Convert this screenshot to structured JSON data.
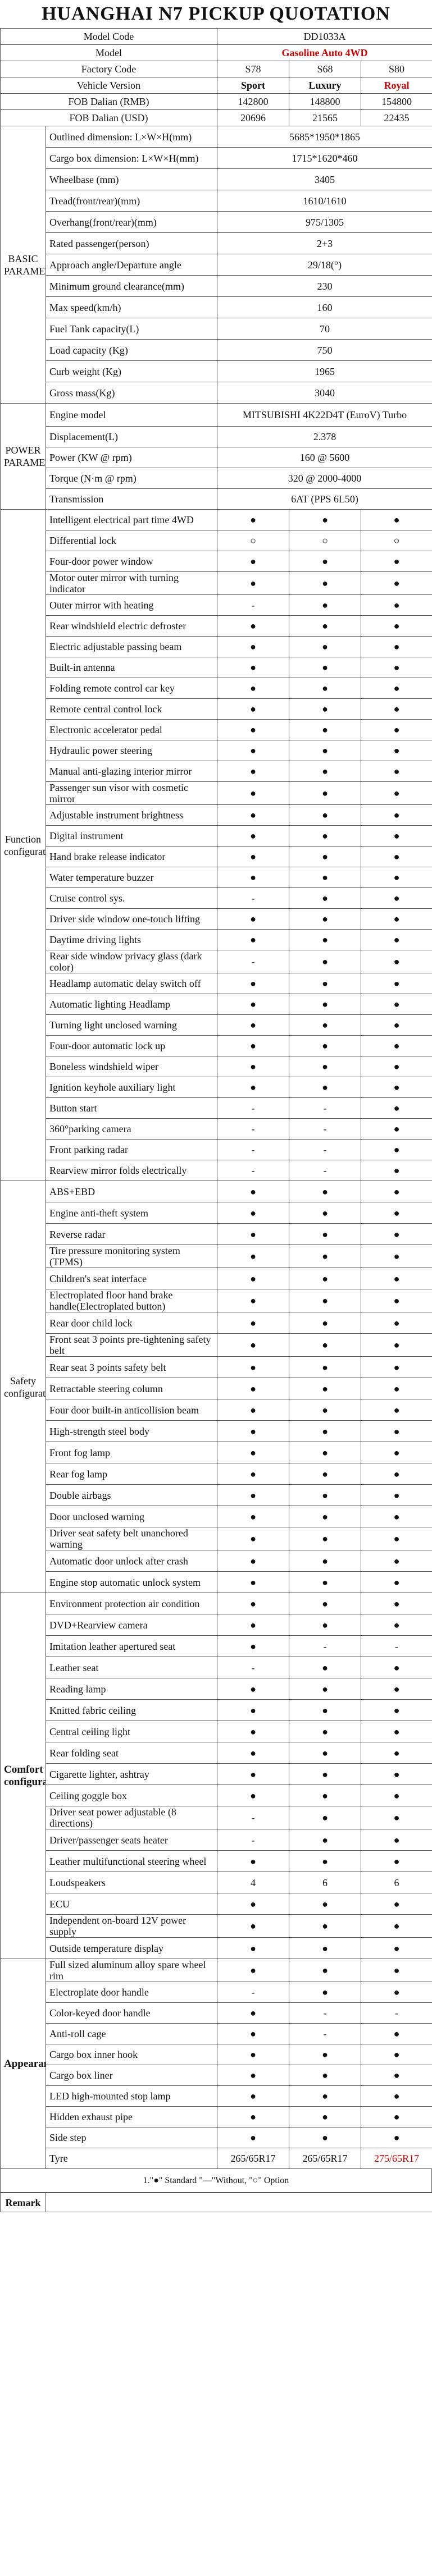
{
  "title": "HUANGHAI N7 PICKUP QUOTATION",
  "header": {
    "model_code_label": "Model Code",
    "model_code_value": "DD1033A",
    "model_label": "Model",
    "model_value": "Gasoline Auto 4WD",
    "factory_code_label": "Factory Code",
    "factory_codes": [
      "S78",
      "S68",
      "S80"
    ],
    "vehicle_version_label": "Vehicle Version",
    "versions": [
      "Sport",
      "Luxury",
      "Royal"
    ],
    "fob_rmb_label": "FOB Dalian (RMB)",
    "fob_rmb": [
      "142800",
      "148800",
      "154800"
    ],
    "fob_usd_label": "FOB Dalian (USD)",
    "fob_usd": [
      "20696",
      "21565",
      "22435"
    ]
  },
  "sections": [
    {
      "name": "BASIC PARAMETER",
      "rows": [
        {
          "item": "Outlined dimension: L×W×H(mm)",
          "value": "5685*1950*1865"
        },
        {
          "item": "Cargo box dimension: L×W×H(mm)",
          "value": "1715*1620*460"
        },
        {
          "item": "Wheelbase (mm)",
          "value": "3405"
        },
        {
          "item": "Tread(front/rear)(mm)",
          "value": "1610/1610"
        },
        {
          "item": "Overhang(front/rear)(mm)",
          "value": "975/1305"
        },
        {
          "item": "Rated passenger(person)",
          "value": "2+3"
        },
        {
          "item": "Approach angle/Departure angle",
          "value": "29/18(°)"
        },
        {
          "item": "Minimum ground clearance(mm)",
          "value": "230"
        },
        {
          "item": "Max speed(km/h)",
          "value": "160"
        },
        {
          "item": "Fuel  Tank capacity(L)",
          "value": "70"
        },
        {
          "item": "Load capacity (Kg)",
          "value": "750"
        },
        {
          "item": "Curb weight (Kg)",
          "value": "1965"
        },
        {
          "item": "Gross mass(Kg)",
          "value": "3040"
        }
      ]
    },
    {
      "name": "POWER PARAMETER",
      "rows": [
        {
          "item": "Engine model",
          "value": "MITSUBISHI 4K22D4T (EuroV) Turbo"
        },
        {
          "item": "Displacement(L)",
          "value": "2.378"
        },
        {
          "item": "Power (KW @ rpm)",
          "value": "160 @ 5600"
        },
        {
          "item": "Torque (N·m @ rpm)",
          "value": "320 @ 2000-4000"
        },
        {
          "item": "Transmission",
          "value": "6AT (PPS 6L50)"
        }
      ]
    },
    {
      "name": "Function configuration",
      "rows": [
        {
          "item": "Intelligent electrical part time 4WD",
          "vals": [
            "●",
            "●",
            "●"
          ]
        },
        {
          "item": "Differential lock",
          "vals": [
            "○",
            "○",
            "○"
          ]
        },
        {
          "item": "Four-door power window",
          "vals": [
            "●",
            "●",
            "●"
          ]
        },
        {
          "item": "Motor outer mirror with turning indicator",
          "vals": [
            "●",
            "●",
            "●"
          ]
        },
        {
          "item": "Outer mirror with heating",
          "vals": [
            "-",
            "●",
            "●"
          ]
        },
        {
          "item": "Rear windshield electric defroster",
          "vals": [
            "●",
            "●",
            "●"
          ]
        },
        {
          "item": "Electric adjustable passing beam",
          "vals": [
            "●",
            "●",
            "●"
          ]
        },
        {
          "item": "Built-in antenna",
          "vals": [
            "●",
            "●",
            "●"
          ]
        },
        {
          "item": "Folding remote control car key",
          "vals": [
            "●",
            "●",
            "●"
          ]
        },
        {
          "item": "Remote central control lock",
          "vals": [
            "●",
            "●",
            "●"
          ]
        },
        {
          "item": "Electronic accelerator pedal",
          "vals": [
            "●",
            "●",
            "●"
          ]
        },
        {
          "item": "Hydraulic power steering",
          "vals": [
            "●",
            "●",
            "●"
          ]
        },
        {
          "item": "Manual anti-glazing interior mirror",
          "vals": [
            "●",
            "●",
            "●"
          ]
        },
        {
          "item": "Passenger sun visor with cosmetic mirror",
          "vals": [
            "●",
            "●",
            "●"
          ]
        },
        {
          "item": "Adjustable instrument brightness",
          "vals": [
            "●",
            "●",
            "●"
          ]
        },
        {
          "item": "Digital instrument",
          "vals": [
            "●",
            "●",
            "●"
          ]
        },
        {
          "item": "Hand brake release indicator",
          "vals": [
            "●",
            "●",
            "●"
          ]
        },
        {
          "item": "Water temperature buzzer",
          "vals": [
            "●",
            "●",
            "●"
          ]
        },
        {
          "item": "Cruise control sys.",
          "vals": [
            "-",
            "●",
            "●"
          ]
        },
        {
          "item": "Driver side window one-touch lifting",
          "vals": [
            "●",
            "●",
            "●"
          ]
        },
        {
          "item": "Daytime driving lights",
          "vals": [
            "●",
            "●",
            "●"
          ]
        },
        {
          "item": "Rear side window privacy glass (dark color)",
          "vals": [
            "-",
            "●",
            "●"
          ]
        },
        {
          "item": "Headlamp automatic delay switch off",
          "vals": [
            "●",
            "●",
            "●"
          ]
        },
        {
          "item": "Automatic lighting Headlamp",
          "vals": [
            "●",
            "●",
            "●"
          ]
        },
        {
          "item": "Turning light unclosed warning",
          "vals": [
            "●",
            "●",
            "●"
          ]
        },
        {
          "item": "Four-door automatic lock up",
          "vals": [
            "●",
            "●",
            "●"
          ]
        },
        {
          "item": "Boneless windshield wiper",
          "vals": [
            "●",
            "●",
            "●"
          ]
        },
        {
          "item": "Ignition keyhole auxiliary light",
          "vals": [
            "●",
            "●",
            "●"
          ]
        },
        {
          "item": "Button start",
          "vals": [
            "-",
            "-",
            "●"
          ]
        },
        {
          "item": "360°parking camera",
          "vals": [
            "-",
            "-",
            "●"
          ]
        },
        {
          "item": "Front parking radar",
          "vals": [
            "-",
            "-",
            "●"
          ]
        },
        {
          "item": "Rearview mirror folds electrically",
          "vals": [
            "-",
            "-",
            "●"
          ]
        }
      ]
    },
    {
      "name": "Safety configuration",
      "rows": [
        {
          "item": "ABS+EBD",
          "vals": [
            "●",
            "●",
            "●"
          ]
        },
        {
          "item": "Engine anti-theft system",
          "vals": [
            "●",
            "●",
            "●"
          ]
        },
        {
          "item": "Reverse radar",
          "vals": [
            "●",
            "●",
            "●"
          ]
        },
        {
          "item": "Tire pressure monitoring system (TPMS)",
          "vals": [
            "●",
            "●",
            "●"
          ]
        },
        {
          "item": "Children's seat interface",
          "vals": [
            "●",
            "●",
            "●"
          ]
        },
        {
          "item": "Electroplated floor hand brake handle(Electroplated button)",
          "vals": [
            "●",
            "●",
            "●"
          ]
        },
        {
          "item": "Rear door child lock",
          "vals": [
            "●",
            "●",
            "●"
          ]
        },
        {
          "item": "Front seat 3 points pre-tightening safety belt",
          "vals": [
            "●",
            "●",
            "●"
          ]
        },
        {
          "item": "Rear seat 3 points safety belt",
          "vals": [
            "●",
            "●",
            "●"
          ]
        },
        {
          "item": "Retractable steering column",
          "vals": [
            "●",
            "●",
            "●"
          ]
        },
        {
          "item": "Four door built-in anticollision beam",
          "vals": [
            "●",
            "●",
            "●"
          ]
        },
        {
          "item": "High-strength steel body",
          "vals": [
            "●",
            "●",
            "●"
          ]
        },
        {
          "item": "Front fog lamp",
          "vals": [
            "●",
            "●",
            "●"
          ]
        },
        {
          "item": "Rear fog lamp",
          "vals": [
            "●",
            "●",
            "●"
          ]
        },
        {
          "item": "Double airbags",
          "vals": [
            "●",
            "●",
            "●"
          ]
        },
        {
          "item": "Door unclosed warning",
          "vals": [
            "●",
            "●",
            "●"
          ]
        },
        {
          "item": "Driver seat safety belt unanchored warning",
          "vals": [
            "●",
            "●",
            "●"
          ]
        },
        {
          "item": "Automatic door unlock after crash",
          "vals": [
            "●",
            "●",
            "●"
          ]
        },
        {
          "item": "Engine stop automatic unlock system",
          "vals": [
            "●",
            "●",
            "●"
          ]
        }
      ]
    },
    {
      "name": "Comfort configuration",
      "rows": [
        {
          "item": "Environment protection air condition",
          "vals": [
            "●",
            "●",
            "●"
          ]
        },
        {
          "item": "DVD+Rearview camera",
          "vals": [
            "●",
            "●",
            "●"
          ]
        },
        {
          "item": "Imitation leather apertured seat",
          "vals": [
            "●",
            "-",
            "-"
          ]
        },
        {
          "item": "Leather seat",
          "vals": [
            "-",
            "●",
            "●"
          ]
        },
        {
          "item": "Reading lamp",
          "vals": [
            "●",
            "●",
            "●"
          ]
        },
        {
          "item": "Knitted fabric ceiling",
          "vals": [
            "●",
            "●",
            "●"
          ]
        },
        {
          "item": "Central ceiling light",
          "vals": [
            "●",
            "●",
            "●"
          ]
        },
        {
          "item": "Rear folding seat",
          "vals": [
            "●",
            "●",
            "●"
          ]
        },
        {
          "item": "Cigarette lighter, ashtray",
          "vals": [
            "●",
            "●",
            "●"
          ]
        },
        {
          "item": "Ceiling goggle box",
          "vals": [
            "●",
            "●",
            "●"
          ]
        },
        {
          "item": "Driver seat power adjustable (8 directions)",
          "vals": [
            "-",
            "●",
            "●"
          ]
        },
        {
          "item": "Driver/passenger seats heater",
          "vals": [
            "-",
            "●",
            "●"
          ]
        },
        {
          "item": "Leather multifunctional steering wheel",
          "vals": [
            "●",
            "●",
            "●"
          ]
        },
        {
          "item": "Loudspeakers",
          "vals": [
            "4",
            "6",
            "6"
          ]
        },
        {
          "item": "ECU",
          "vals": [
            "●",
            "●",
            "●"
          ]
        },
        {
          "item": "Independent on-board 12V power supply",
          "vals": [
            "●",
            "●",
            "●"
          ]
        },
        {
          "item": "Outside temperature display",
          "vals": [
            "●",
            "●",
            "●"
          ]
        }
      ]
    },
    {
      "name": "Appearance",
      "rows": [
        {
          "item": "Full sized aluminum alloy spare wheel rim",
          "vals": [
            "●",
            "●",
            "●"
          ]
        },
        {
          "item": "Electroplate door handle",
          "vals": [
            "-",
            "●",
            "●"
          ]
        },
        {
          "item": "Color-keyed door handle",
          "vals": [
            "●",
            "-",
            "-"
          ]
        },
        {
          "item": "Anti-roll cage",
          "vals": [
            "●",
            "-",
            "●"
          ]
        },
        {
          "item": "Cargo box inner hook",
          "vals": [
            "●",
            "●",
            "●"
          ]
        },
        {
          "item": "Cargo box liner",
          "vals": [
            "●",
            "●",
            "●"
          ]
        },
        {
          "item": "LED high-mounted stop lamp",
          "vals": [
            "●",
            "●",
            "●"
          ]
        },
        {
          "item": "Hidden exhaust pipe",
          "vals": [
            "●",
            "●",
            "●"
          ]
        },
        {
          "item": "Side step",
          "vals": [
            "●",
            "●",
            "●"
          ]
        },
        {
          "item": "Tyre",
          "vals": [
            "265/65R17",
            "265/65R17",
            "275/65R17"
          ]
        }
      ]
    }
  ],
  "legend": "1.\"●\" Standard   \"—\"Without, \"○\" Option",
  "remark_label": "Remark",
  "colors": {
    "accent_red": "#d10000",
    "border": "#555555"
  }
}
